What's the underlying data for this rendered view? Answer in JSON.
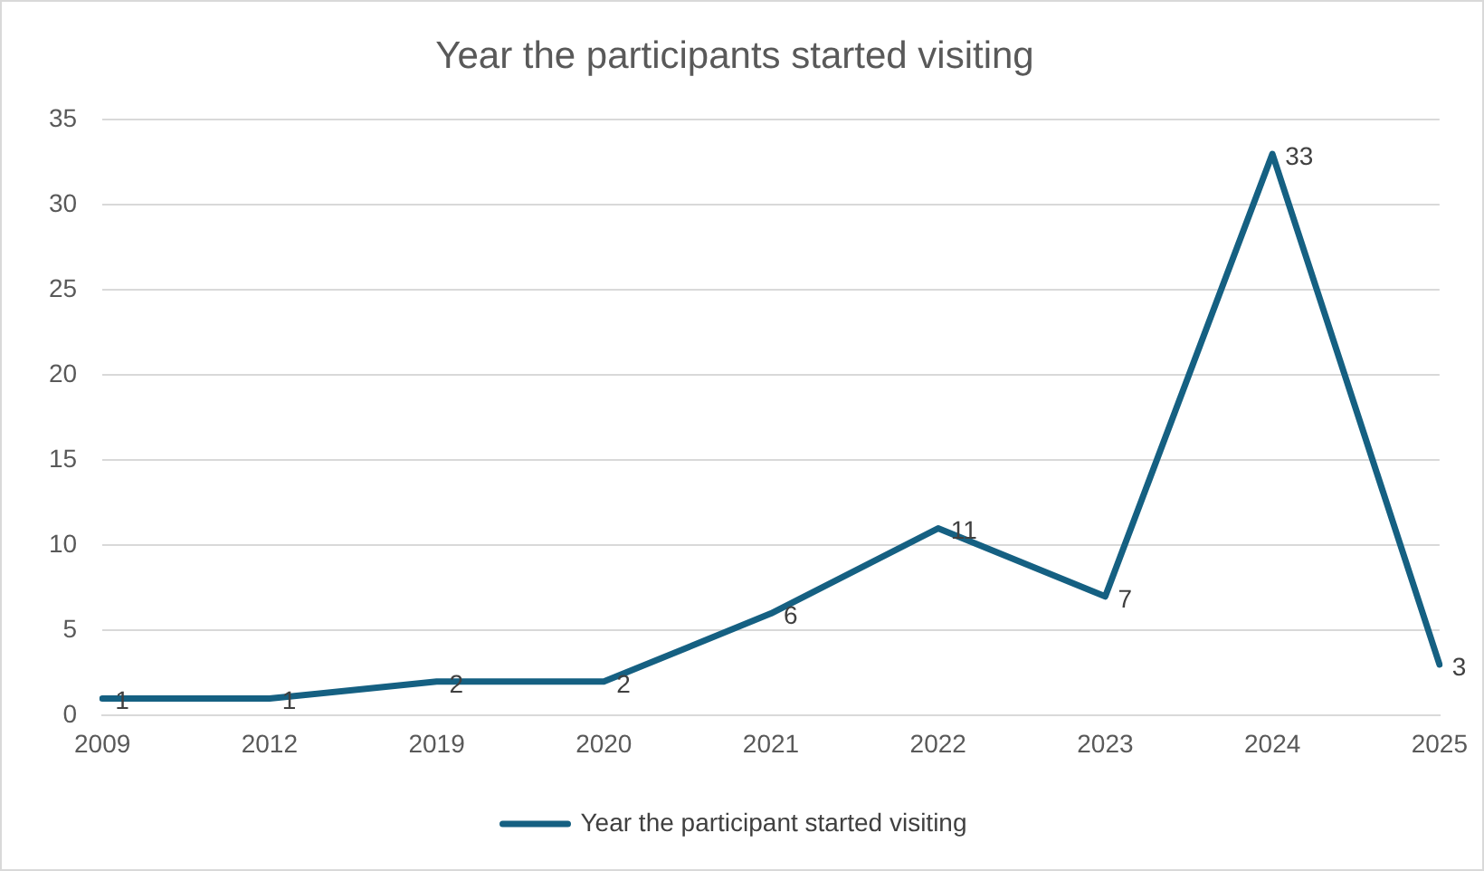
{
  "chart_data": {
    "type": "line",
    "title": "Year the participants started visiting",
    "categories": [
      "2009",
      "2012",
      "2019",
      "2020",
      "2021",
      "2022",
      "2023",
      "2024",
      "2025"
    ],
    "series": [
      {
        "name": "Year the participant started visiting",
        "color": "#156082",
        "values": [
          1,
          1,
          2,
          2,
          6,
          11,
          7,
          33,
          3
        ]
      }
    ],
    "ylim": [
      0,
      35
    ],
    "yticks": [
      0,
      5,
      10,
      15,
      20,
      25,
      30,
      35
    ],
    "grid": "y",
    "legend": "bottom",
    "data_labels": true,
    "marker": "none",
    "line_style": "solid"
  }
}
